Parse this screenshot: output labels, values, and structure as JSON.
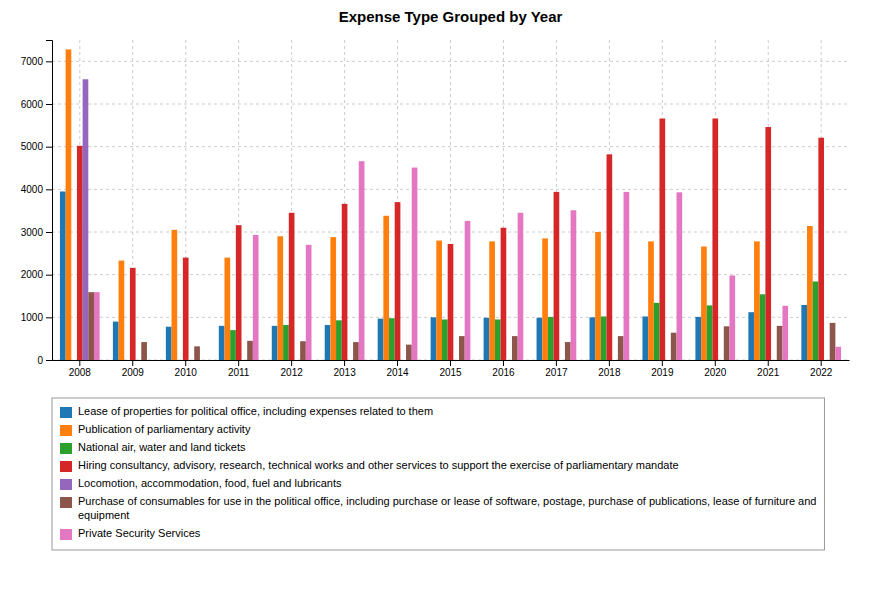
{
  "chart_data": {
    "type": "bar",
    "title": "Expense Type Grouped by Year",
    "categories": [
      "2008",
      "2009",
      "2010",
      "2011",
      "2012",
      "2013",
      "2014",
      "2015",
      "2016",
      "2017",
      "2018",
      "2019",
      "2020",
      "2021",
      "2022"
    ],
    "series": [
      {
        "name": "Lease of properties for political office, including expenses related to them",
        "values": [
          3950,
          900,
          780,
          800,
          800,
          820,
          970,
          1000,
          990,
          990,
          1000,
          1020,
          1010,
          1120,
          1290
        ]
      },
      {
        "name": "Publication of parliamentary activity",
        "values": [
          7280,
          2330,
          3050,
          2400,
          2900,
          2880,
          3380,
          2800,
          2780,
          2850,
          3000,
          2780,
          2660,
          2780,
          3140
        ]
      },
      {
        "name": "National air, water and land tickets",
        "values": [
          0,
          0,
          0,
          700,
          820,
          930,
          980,
          950,
          950,
          1010,
          1020,
          1340,
          1280,
          1540,
          1840
        ]
      },
      {
        "name": "Hiring consultancy, advisory, research, technical works and other services to support the exercise of parliamentary mandate",
        "values": [
          5020,
          2160,
          2400,
          3160,
          3450,
          3660,
          3700,
          2720,
          3100,
          3940,
          4820,
          5660,
          5660,
          5460,
          5210
        ]
      },
      {
        "name": "Locomotion, accommodation, food, fuel and lubricants",
        "values": [
          6580,
          0,
          0,
          0,
          0,
          0,
          0,
          0,
          0,
          0,
          0,
          0,
          0,
          0,
          0
        ]
      },
      {
        "name": "Purchase of consumables for use in the political office, including purchase or lease of software, postage, purchase of publications, lease of furniture and equipment",
        "values": [
          1590,
          420,
          320,
          450,
          440,
          420,
          360,
          560,
          560,
          420,
          560,
          640,
          790,
          800,
          870
        ]
      },
      {
        "name": "Private Security Services",
        "values": [
          1590,
          0,
          0,
          2930,
          2700,
          4660,
          4510,
          3260,
          3450,
          3510,
          3940,
          3930,
          1980,
          1270,
          310
        ]
      }
    ],
    "ylim": [
      0,
      7500
    ],
    "yticks": [
      0,
      1000,
      2000,
      3000,
      4000,
      5000,
      6000,
      7000
    ],
    "grid": true,
    "legend": "bottom"
  }
}
